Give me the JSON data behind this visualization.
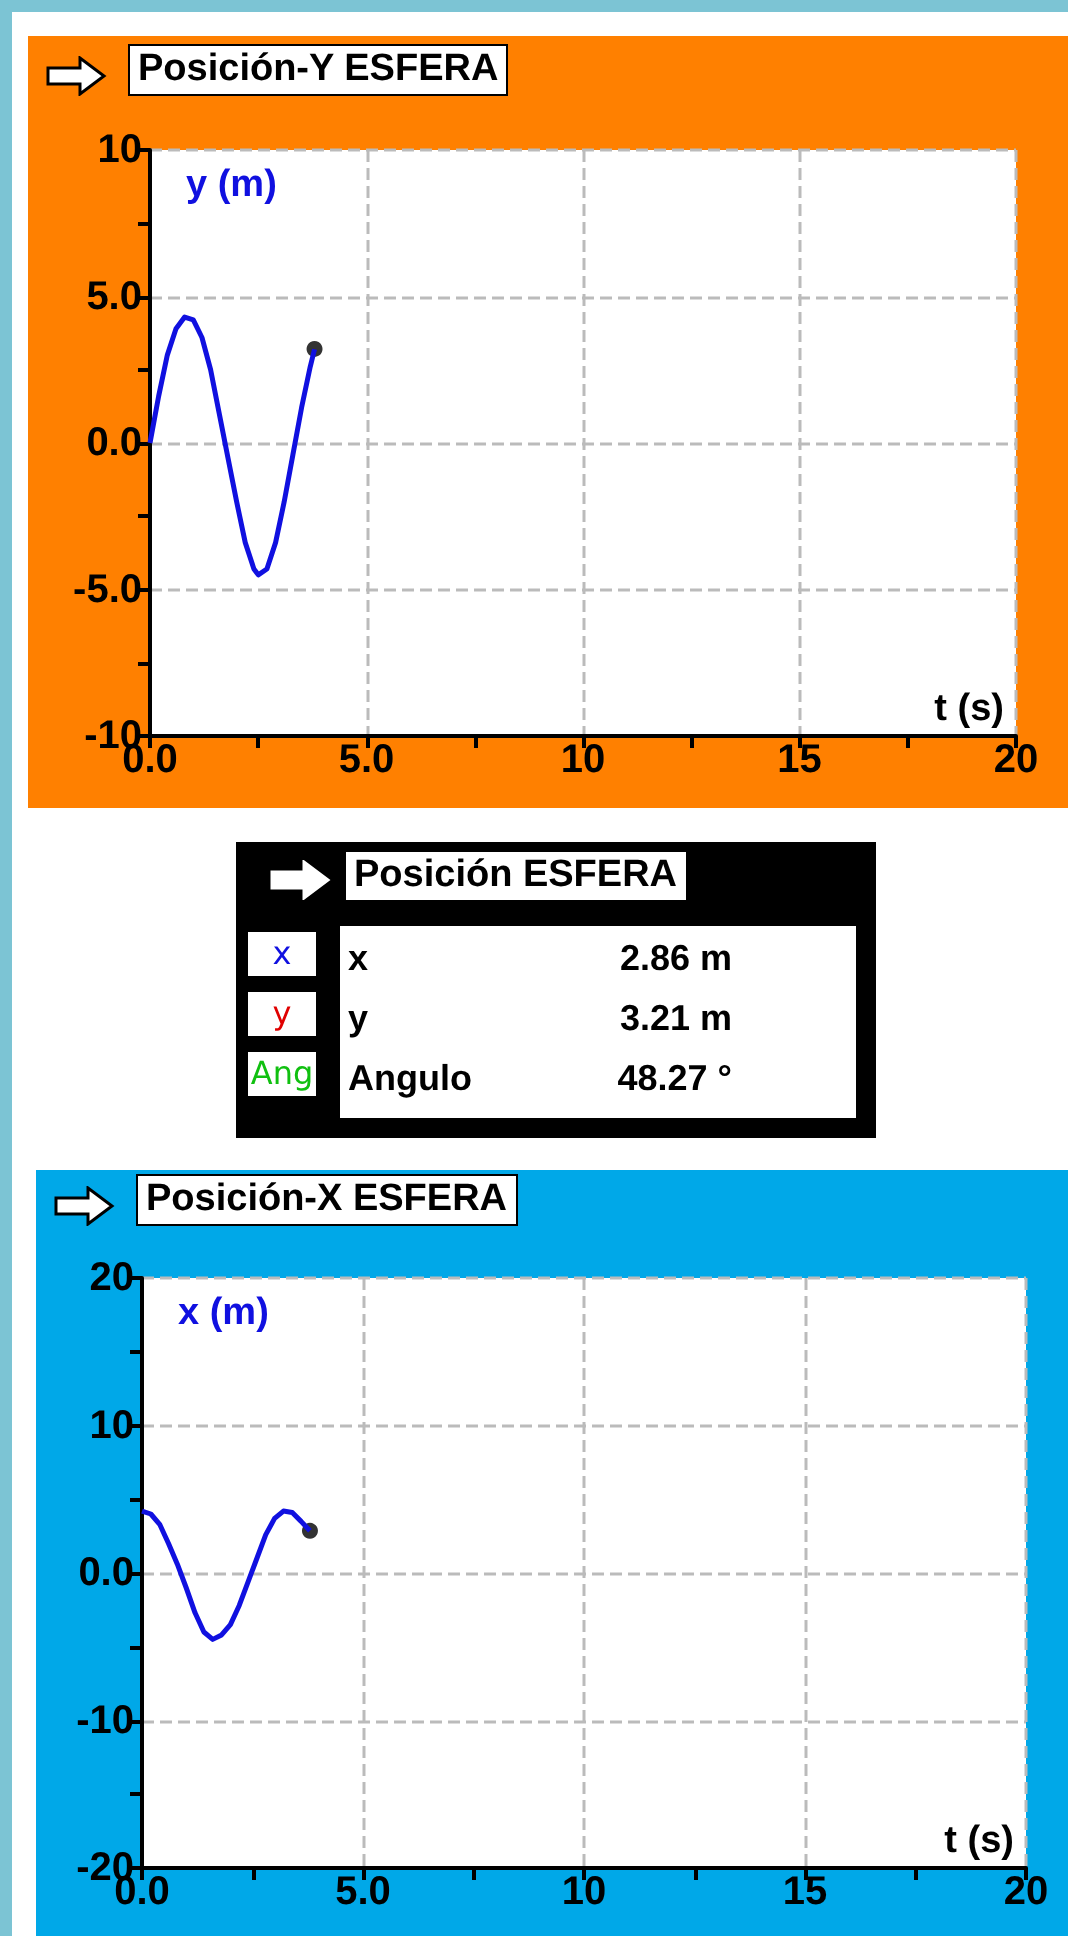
{
  "chart_data": [
    {
      "type": "line",
      "title": "Posición-Y ESFERA",
      "xlabel": "t (s)",
      "ylabel": "y (m)",
      "xlim": [
        0,
        20
      ],
      "ylim": [
        -10,
        10
      ],
      "grid": true,
      "marker": "none",
      "xticks": [
        {
          "value": 0,
          "label": "0.0"
        },
        {
          "value": 2.5,
          "label": null
        },
        {
          "value": 5,
          "label": "5.0"
        },
        {
          "value": 7.5,
          "label": null
        },
        10,
        {
          "value": 12.5,
          "label": null
        },
        15,
        {
          "value": 17.5,
          "label": null
        },
        20
      ],
      "yticks": [
        -10,
        {
          "value": -7.5,
          "label": null
        },
        {
          "value": -5,
          "label": "-5.0"
        },
        {
          "value": -2.5,
          "label": null
        },
        {
          "value": 0,
          "label": "0.0"
        },
        {
          "value": 2.5,
          "label": null
        },
        {
          "value": 5,
          "label": "5.0"
        },
        {
          "value": 7.5,
          "label": null
        },
        10
      ],
      "series": [
        {
          "color": "#1010e0",
          "x": [
            0,
            0.2,
            0.4,
            0.6,
            0.8,
            1.0,
            1.2,
            1.4,
            1.6,
            1.8,
            2.0,
            2.2,
            2.4,
            2.5,
            2.7,
            2.9,
            3.1,
            3.3,
            3.5,
            3.7,
            3.8
          ],
          "values": [
            0,
            1.6,
            3.0,
            3.9,
            4.3,
            4.2,
            3.6,
            2.5,
            1.0,
            -0.5,
            -2.0,
            -3.4,
            -4.3,
            -4.5,
            -4.3,
            -3.4,
            -2.0,
            -0.4,
            1.2,
            2.6,
            3.2
          ]
        },
        {
          "type": "scatter",
          "marker": "circle",
          "color": "#000000",
          "x": [
            3.8
          ],
          "values": [
            3.21
          ]
        }
      ]
    },
    {
      "type": "other",
      "title": "Posición ESFERA",
      "annotations": [
        "x",
        "y",
        "Ang",
        "x",
        "2.86 m",
        "y",
        "3.21 m",
        "Angulo",
        "48.27 °"
      ]
    },
    {
      "type": "line",
      "title": "Posición-X ESFERA",
      "xlabel": "t (s)",
      "ylabel": "x (m)",
      "xlim": [
        0,
        20
      ],
      "ylim": [
        -20,
        20
      ],
      "grid": true,
      "marker": "none",
      "xticks": [
        {
          "value": 0,
          "label": "0.0"
        },
        {
          "value": 2.5,
          "label": null
        },
        {
          "value": 5,
          "label": "5.0"
        },
        {
          "value": 7.5,
          "label": null
        },
        10,
        {
          "value": 12.5,
          "label": null
        },
        15,
        {
          "value": 17.5,
          "label": null
        },
        20
      ],
      "yticks": [
        -20,
        {
          "value": -15,
          "label": null
        },
        -10,
        {
          "value": -5,
          "label": null
        },
        {
          "value": 0,
          "label": "0.0"
        },
        {
          "value": 5,
          "label": null
        },
        10,
        {
          "value": 15,
          "label": null
        },
        20
      ],
      "series": [
        {
          "color": "#1010e0",
          "x": [
            0,
            0.2,
            0.4,
            0.6,
            0.8,
            1.0,
            1.2,
            1.4,
            1.6,
            1.8,
            2.0,
            2.2,
            2.4,
            2.6,
            2.8,
            3.0,
            3.2,
            3.4,
            3.6,
            3.8
          ],
          "values": [
            4.2,
            4.0,
            3.3,
            2.0,
            0.6,
            -1.0,
            -2.7,
            -4.0,
            -4.5,
            -4.2,
            -3.5,
            -2.2,
            -0.6,
            1.0,
            2.6,
            3.7,
            4.2,
            4.1,
            3.5,
            2.86
          ]
        },
        {
          "type": "scatter",
          "marker": "circle",
          "color": "#000000",
          "x": [
            3.8
          ],
          "values": [
            2.86
          ]
        }
      ]
    }
  ]
}
